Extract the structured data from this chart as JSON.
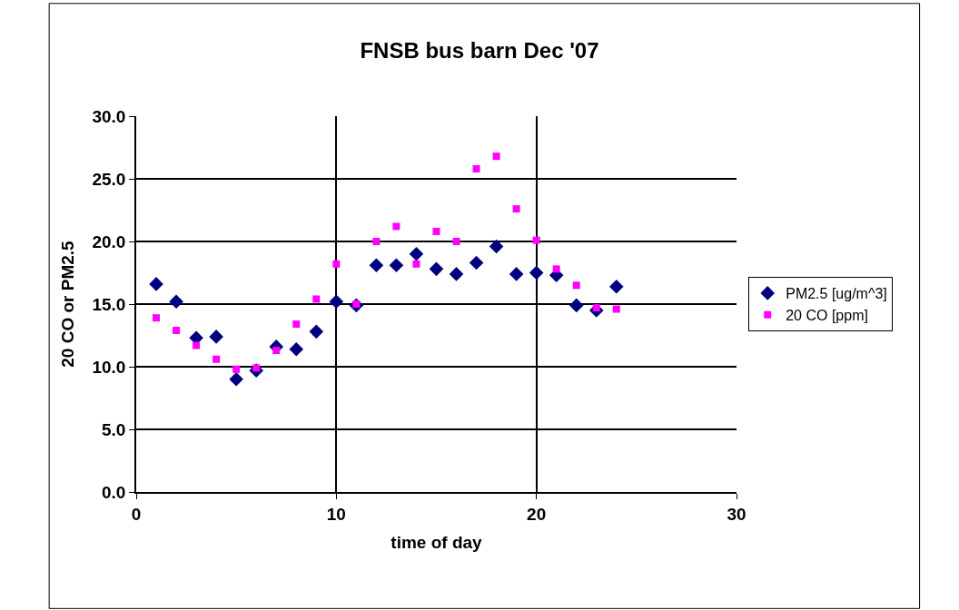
{
  "chart_data": {
    "type": "scatter",
    "title": "FNSB bus barn Dec '07",
    "xlabel": "time of day",
    "ylabel": "20 CO or PM2.5",
    "x": [
      1,
      2,
      3,
      4,
      5,
      6,
      7,
      8,
      9,
      10,
      11,
      12,
      13,
      14,
      15,
      16,
      17,
      18,
      19,
      20,
      21,
      22,
      23,
      24
    ],
    "series": [
      {
        "name": "PM2.5 [ug/m^3]",
        "color": "#000080",
        "marker": "diamond",
        "values": [
          16.6,
          15.2,
          12.3,
          12.4,
          9.0,
          9.7,
          11.6,
          11.4,
          12.8,
          15.2,
          14.9,
          18.1,
          18.1,
          19.0,
          17.8,
          17.4,
          18.3,
          19.6,
          17.4,
          17.5,
          17.3,
          14.9,
          14.5,
          16.4
        ]
      },
      {
        "name": "20 CO [ppm]",
        "color": "#ff00ff",
        "marker": "square",
        "values": [
          13.9,
          12.9,
          11.7,
          10.6,
          9.8,
          9.9,
          11.3,
          13.4,
          15.4,
          18.2,
          15.0,
          20.0,
          21.2,
          18.2,
          20.8,
          20.0,
          25.8,
          26.8,
          22.6,
          20.1,
          17.8,
          16.5,
          14.7,
          14.6
        ]
      }
    ],
    "xlim": [
      0,
      30
    ],
    "xticks": [
      0,
      10,
      20,
      30
    ],
    "ylim": [
      0,
      30
    ],
    "yticks": [
      {
        "value": 0,
        "label": "0.0"
      },
      {
        "value": 5,
        "label": "5.0"
      },
      {
        "value": 10,
        "label": "10.0"
      },
      {
        "value": 15,
        "label": "15.0"
      },
      {
        "value": 20,
        "label": "20.0"
      },
      {
        "value": 25,
        "label": "25.0"
      },
      {
        "value": 30,
        "label": "30.0"
      }
    ],
    "grid": true,
    "legend": "right"
  }
}
